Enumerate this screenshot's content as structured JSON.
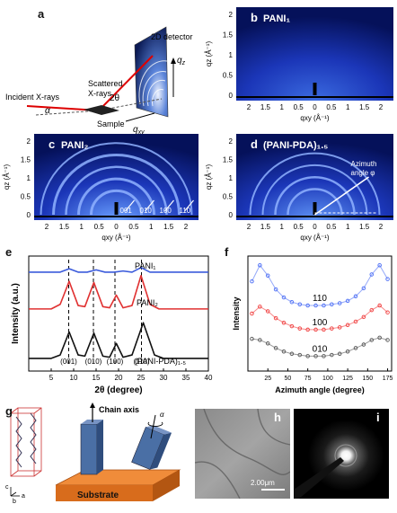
{
  "panel_letters": {
    "a": "a",
    "b": "b",
    "c": "c",
    "d": "d",
    "e": "e",
    "f": "f",
    "g": "g",
    "h": "h",
    "i": "i"
  },
  "panel_a": {
    "detector": "2D detector",
    "incident": "Incident X-rays",
    "scattered_1": "Scattered",
    "scattered_2": "X-rays",
    "sample": "Sample",
    "alpha": "α",
    "two_theta": "2θ",
    "qz": "q",
    "qz_sub": "z",
    "qxy": "q",
    "qxy_sub": "xy"
  },
  "gisaxs": {
    "y_ticks": [
      "2",
      "1.5",
      "1",
      "0.5",
      "0"
    ],
    "x_ticks": [
      "2",
      "1.5",
      "1",
      "0.5",
      "0",
      "0.5",
      "1",
      "1.5",
      "2"
    ],
    "ylabel": "qz (Å⁻¹)",
    "xlabel": "qxy (Å⁻¹)",
    "b_title": "PANI₁",
    "c_title": "PANI₂",
    "d_title": "(PANI-PDA)₁.₅",
    "c_peaks": [
      "001",
      "010",
      "100",
      "110"
    ],
    "d_annot_1": "Azimuth",
    "d_annot_2": "angle φ"
  },
  "chart_data": [
    {
      "type": "line",
      "panel": "e",
      "xlabel": "2θ (degree)",
      "ylabel": "Intensity (a.u.)",
      "xlim": [
        0,
        40
      ],
      "x_ticks": [
        5,
        10,
        15,
        20,
        25,
        30,
        35,
        40
      ],
      "series": [
        {
          "name": "PANI₁",
          "color": "#3b5bdb",
          "x": [
            0,
            5,
            7,
            9,
            11,
            13,
            15,
            17,
            19,
            21,
            23,
            25,
            27,
            29,
            32,
            40
          ],
          "y": [
            0.86,
            0.86,
            0.86,
            0.89,
            0.86,
            0.86,
            0.88,
            0.86,
            0.86,
            0.87,
            0.86,
            0.9,
            0.86,
            0.86,
            0.86,
            0.86
          ]
        },
        {
          "name": "PANI₂",
          "color": "#e03131",
          "x": [
            0,
            5,
            7,
            9,
            11,
            12.5,
            14.5,
            16.5,
            18,
            19.5,
            21,
            23,
            25,
            27,
            29,
            32,
            40
          ],
          "y": [
            0.54,
            0.54,
            0.58,
            0.78,
            0.57,
            0.56,
            0.77,
            0.56,
            0.55,
            0.66,
            0.55,
            0.57,
            0.83,
            0.58,
            0.54,
            0.54,
            0.54
          ]
        },
        {
          "name": "(PANI-PDA)₁.₅",
          "color": "#111111",
          "x": [
            0,
            5,
            7,
            9,
            11,
            12.5,
            14.5,
            16.5,
            18,
            19.5,
            21,
            23,
            25.5,
            28,
            30,
            33,
            40
          ],
          "y": [
            0.11,
            0.11,
            0.14,
            0.34,
            0.14,
            0.13,
            0.33,
            0.13,
            0.12,
            0.24,
            0.12,
            0.14,
            0.42,
            0.14,
            0.11,
            0.11,
            0.11
          ]
        }
      ],
      "peak_lines_x": [
        8.9,
        14.4,
        19.2,
        25.1
      ],
      "peak_labels": [
        "(001)",
        "(010)",
        "(100)",
        "(110)"
      ]
    },
    {
      "type": "scatter",
      "panel": "f",
      "xlabel": "Azimuth angle (degree)",
      "ylabel": "Intensity",
      "xlim": [
        0,
        180
      ],
      "x_ticks": [
        25,
        50,
        75,
        100,
        125,
        150,
        175
      ],
      "series": [
        {
          "name": "110",
          "color": "#4c6ef5",
          "x": [
            5,
            15,
            25,
            35,
            45,
            55,
            65,
            75,
            85,
            95,
            105,
            115,
            125,
            135,
            145,
            155,
            165,
            175
          ],
          "y": [
            0.78,
            0.92,
            0.83,
            0.71,
            0.64,
            0.6,
            0.58,
            0.57,
            0.57,
            0.57,
            0.58,
            0.59,
            0.61,
            0.65,
            0.72,
            0.84,
            0.92,
            0.8
          ]
        },
        {
          "name": "100",
          "color": "#f03e3e",
          "x": [
            5,
            15,
            25,
            35,
            45,
            55,
            65,
            75,
            85,
            95,
            105,
            115,
            125,
            135,
            145,
            155,
            165,
            175
          ],
          "y": [
            0.5,
            0.56,
            0.52,
            0.46,
            0.42,
            0.39,
            0.37,
            0.36,
            0.36,
            0.36,
            0.37,
            0.38,
            0.4,
            0.43,
            0.47,
            0.53,
            0.57,
            0.51
          ]
        },
        {
          "name": "010",
          "color": "#555555",
          "x": [
            5,
            15,
            25,
            35,
            45,
            55,
            65,
            75,
            85,
            95,
            105,
            115,
            125,
            135,
            145,
            155,
            165,
            175
          ],
          "y": [
            0.28,
            0.27,
            0.24,
            0.2,
            0.17,
            0.15,
            0.14,
            0.13,
            0.13,
            0.13,
            0.14,
            0.15,
            0.17,
            0.2,
            0.23,
            0.27,
            0.29,
            0.27
          ]
        }
      ]
    }
  ],
  "panel_g": {
    "chain_axis": "Chain axis",
    "substrate": "Substrate",
    "axis_c": "c",
    "axis_a": "a",
    "axis_b": "b"
  },
  "panel_h": {
    "scale": "2.00μm"
  }
}
